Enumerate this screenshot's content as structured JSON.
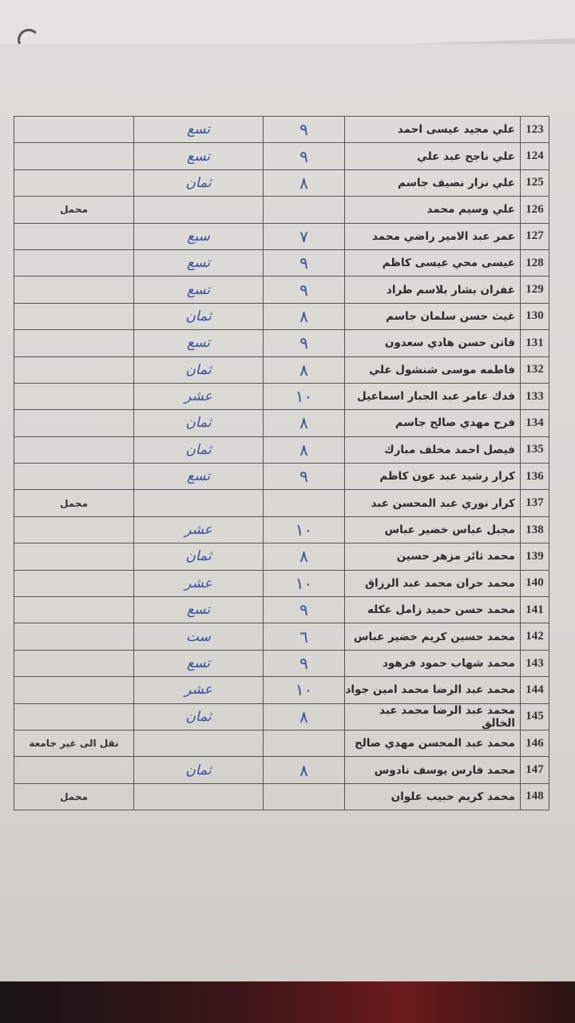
{
  "rows": [
    {
      "no": "123",
      "name": "علي مجيد عيسى احمد",
      "grade_digit": "٩",
      "grade_word": "تسع",
      "note": ""
    },
    {
      "no": "124",
      "name": "علي ناجح عبد علي",
      "grade_digit": "٩",
      "grade_word": "تسع",
      "note": ""
    },
    {
      "no": "125",
      "name": "علي نزار نصيف جاسم",
      "grade_digit": "٨",
      "grade_word": "ثمان",
      "note": ""
    },
    {
      "no": "126",
      "name": "علي وسيم محمد",
      "grade_digit": "",
      "grade_word": "",
      "note": "محمل"
    },
    {
      "no": "127",
      "name": "عمر عبد الامير راضي محمد",
      "grade_digit": "٧",
      "grade_word": "سبع",
      "note": ""
    },
    {
      "no": "128",
      "name": "عيسى محي عيسى كاظم",
      "grade_digit": "٩",
      "grade_word": "تسع",
      "note": ""
    },
    {
      "no": "129",
      "name": "غفران بشار بلاسم طراد",
      "grade_digit": "٩",
      "grade_word": "تسع",
      "note": ""
    },
    {
      "no": "130",
      "name": "غيث حسن سلمان جاسم",
      "grade_digit": "٨",
      "grade_word": "ثمان",
      "note": ""
    },
    {
      "no": "131",
      "name": "فاتن حسن هادي سعدون",
      "grade_digit": "٩",
      "grade_word": "تسع",
      "note": ""
    },
    {
      "no": "132",
      "name": "فاطمه موسى شنشول علي",
      "grade_digit": "٨",
      "grade_word": "ثمان",
      "note": ""
    },
    {
      "no": "133",
      "name": "فدك عامر عبد الجبار اسماعيل",
      "grade_digit": "١٠",
      "grade_word": "عشر",
      "note": ""
    },
    {
      "no": "134",
      "name": "فرح مهدي صالح جاسم",
      "grade_digit": "٨",
      "grade_word": "ثمان",
      "note": ""
    },
    {
      "no": "135",
      "name": "فيصل احمد مخلف مبارك",
      "grade_digit": "٨",
      "grade_word": "ثمان",
      "note": ""
    },
    {
      "no": "136",
      "name": "كرار رشيد عبد عون كاظم",
      "grade_digit": "٩",
      "grade_word": "تسع",
      "note": ""
    },
    {
      "no": "137",
      "name": "كرار نوري عبد المحسن عبد",
      "grade_digit": "",
      "grade_word": "",
      "note": "محمل"
    },
    {
      "no": "138",
      "name": "مجبل عباس خضير عباس",
      "grade_digit": "١٠",
      "grade_word": "عشر",
      "note": ""
    },
    {
      "no": "139",
      "name": "محمد ثائر مزهر حسين",
      "grade_digit": "٨",
      "grade_word": "ثمان",
      "note": ""
    },
    {
      "no": "140",
      "name": "محمد حران محمد عبد الرزاق",
      "grade_digit": "١٠",
      "grade_word": "عشر",
      "note": ""
    },
    {
      "no": "141",
      "name": "محمد حسن حميد زامل عكله",
      "grade_digit": "٩",
      "grade_word": "تسع",
      "note": ""
    },
    {
      "no": "142",
      "name": "محمد حسين كريم خضير عباس",
      "grade_digit": "٦",
      "grade_word": "ست",
      "note": ""
    },
    {
      "no": "143",
      "name": "محمد شهاب حمود فرهود",
      "grade_digit": "٩",
      "grade_word": "تسع",
      "note": ""
    },
    {
      "no": "144",
      "name": "محمد عبد الرضا محمد امين جواد",
      "grade_digit": "١٠",
      "grade_word": "عشر",
      "note": ""
    },
    {
      "no": "145",
      "name": "محمد عبد الرضا محمد عبد الخالق",
      "grade_digit": "٨",
      "grade_word": "ثمان",
      "note": ""
    },
    {
      "no": "146",
      "name": "محمد عبد المحسن مهدي صالح",
      "grade_digit": "",
      "grade_word": "",
      "note": "نقل الى غير جامعة"
    },
    {
      "no": "147",
      "name": "محمد فارس يوسف نادوس",
      "grade_digit": "٨",
      "grade_word": "ثمان",
      "note": ""
    },
    {
      "no": "148",
      "name": "محمد كريم حبيب علوان",
      "grade_digit": "",
      "grade_word": "",
      "note": "محمل"
    }
  ],
  "colors": {
    "ink_handwritten": "#3a4fa0",
    "paper": "#dcdad5"
  }
}
